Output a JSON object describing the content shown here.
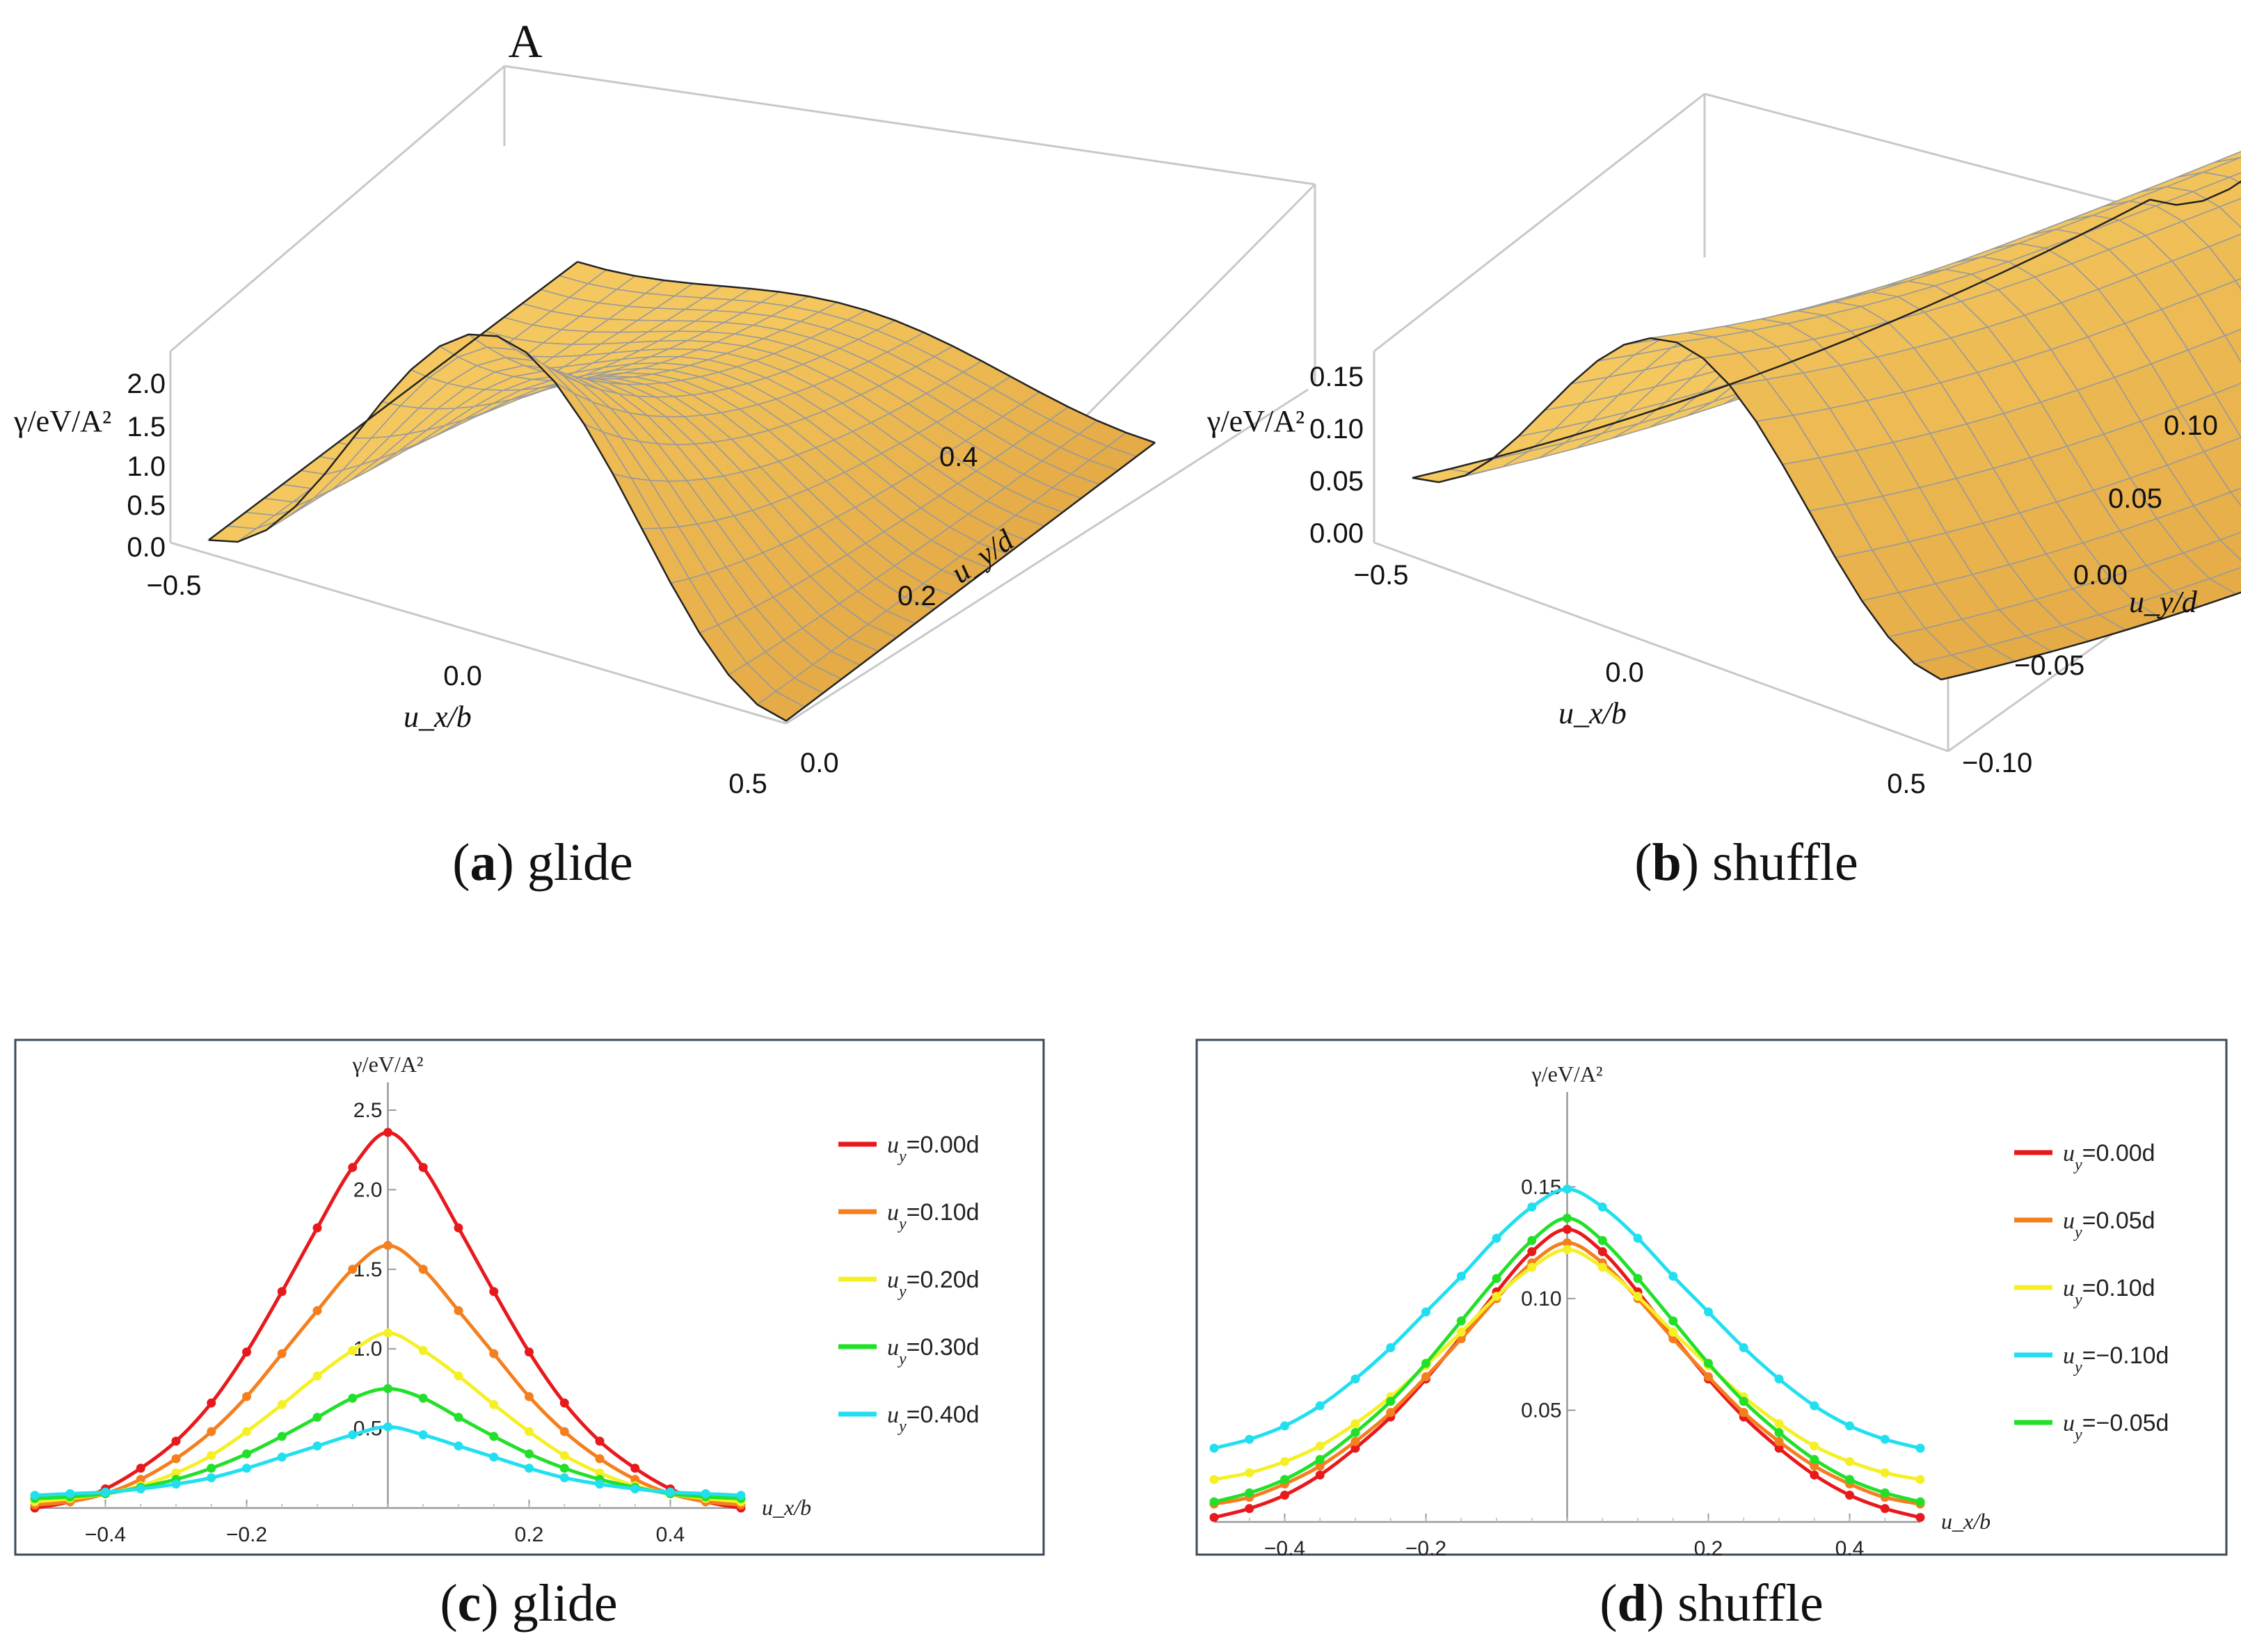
{
  "panels": [
    {
      "letter": "a",
      "caption": "glide",
      "chart_data": {
        "type": "surface",
        "corner_label": "A",
        "zlabel": "γ/eV/A²",
        "xlabel": "u_x/b",
        "ylabel": "u_y/d",
        "z_ticks": [
          "2.0",
          "1.5",
          "1.0",
          "0.5",
          "0.0"
        ],
        "x_ticks": [
          "−0.5",
          "0.0",
          "0.5"
        ],
        "y_ticks": [
          "0.4",
          "0.2",
          "0.0"
        ],
        "xlim": [
          -0.5,
          0.5
        ],
        "ylim": [
          0,
          0.5
        ],
        "zlim": [
          0,
          2.4
        ],
        "surface": "gamma(ux, uy) = peak(uy) * cos^2(pi*ux) + base(uy)",
        "peak_at_ux0": {
          "uy": [
            0.0,
            0.1,
            0.2,
            0.3,
            0.4
          ],
          "gamma": [
            2.35,
            1.64,
            1.06,
            0.72,
            0.48
          ]
        },
        "color": "#f5c354"
      }
    },
    {
      "letter": "b",
      "caption": "shuffle",
      "chart_data": {
        "type": "surface",
        "zlabel": "γ/eV/A²",
        "xlabel": "u_x/b",
        "ylabel": "u_y/d",
        "z_ticks": [
          "0.15",
          "0.10",
          "0.05",
          "0.00"
        ],
        "x_ticks": [
          "−0.5",
          "0.0",
          "0.5"
        ],
        "y_ticks": [
          "0.10",
          "0.05",
          "0.00",
          "−0.05",
          "−0.10"
        ],
        "xlim": [
          -0.5,
          0.5
        ],
        "ylim": [
          -0.1,
          0.1
        ],
        "zlim": [
          0,
          0.18
        ],
        "peak_at_ux0": {
          "uy": [
            -0.1,
            -0.05,
            0.0,
            0.05,
            0.1
          ],
          "gamma": [
            0.175,
            0.16,
            0.148,
            0.145,
            0.145
          ]
        },
        "color": "#f5c354"
      }
    },
    {
      "letter": "c",
      "caption": "glide",
      "chart_data": {
        "type": "line",
        "ylabel": "γ/eV/A²",
        "xlabel": "u_x/b",
        "xlim": [
          -0.5,
          0.5
        ],
        "ylim": [
          0,
          2.5
        ],
        "x_ticks": [
          "−0.4",
          "−0.2",
          "0.2",
          "0.4"
        ],
        "x_tick_values": [
          -0.4,
          -0.2,
          0.2,
          0.4
        ],
        "y_ticks": [
          "0.5",
          "1.0",
          "1.5",
          "2.0",
          "2.5"
        ],
        "y_tick_values": [
          0.5,
          1.0,
          1.5,
          2.0,
          2.5
        ],
        "x": [
          -0.5,
          -0.45,
          -0.4,
          -0.35,
          -0.3,
          -0.25,
          -0.2,
          -0.15,
          -0.1,
          -0.05,
          0.0,
          0.05,
          0.1,
          0.15,
          0.2,
          0.25,
          0.3,
          0.35,
          0.4,
          0.45,
          0.5
        ],
        "series": [
          {
            "name": "u_y=0.00d",
            "color": "#e8191c",
            "values": [
              0.0,
              0.04,
              0.12,
              0.25,
              0.42,
              0.66,
              0.98,
              1.36,
              1.76,
              2.14,
              2.36,
              2.14,
              1.76,
              1.36,
              0.98,
              0.66,
              0.42,
              0.25,
              0.12,
              0.04,
              0.0
            ]
          },
          {
            "name": "u_y=0.10d",
            "color": "#f47f1f",
            "values": [
              0.02,
              0.04,
              0.09,
              0.18,
              0.31,
              0.48,
              0.7,
              0.97,
              1.24,
              1.5,
              1.65,
              1.5,
              1.24,
              0.97,
              0.7,
              0.48,
              0.31,
              0.18,
              0.09,
              0.04,
              0.02
            ]
          },
          {
            "name": "u_y=0.20d",
            "color": "#f5f026",
            "values": [
              0.04,
              0.06,
              0.09,
              0.14,
              0.22,
              0.33,
              0.48,
              0.65,
              0.83,
              0.99,
              1.1,
              0.99,
              0.83,
              0.65,
              0.48,
              0.33,
              0.22,
              0.14,
              0.09,
              0.06,
              0.04
            ]
          },
          {
            "name": "u_y=0.30d",
            "color": "#22e029",
            "values": [
              0.06,
              0.07,
              0.09,
              0.13,
              0.18,
              0.25,
              0.34,
              0.45,
              0.57,
              0.69,
              0.75,
              0.69,
              0.57,
              0.45,
              0.34,
              0.25,
              0.18,
              0.13,
              0.09,
              0.07,
              0.06
            ]
          },
          {
            "name": "u_y=0.40d",
            "color": "#22dff0",
            "values": [
              0.08,
              0.09,
              0.1,
              0.12,
              0.15,
              0.19,
              0.25,
              0.32,
              0.39,
              0.46,
              0.51,
              0.46,
              0.39,
              0.32,
              0.25,
              0.19,
              0.15,
              0.12,
              0.1,
              0.09,
              0.08
            ]
          }
        ]
      }
    },
    {
      "letter": "d",
      "caption": "shuffle",
      "chart_data": {
        "type": "line",
        "ylabel": "γ/eV/A²",
        "xlabel": "u_x/b",
        "xlim": [
          -0.5,
          0.5
        ],
        "ylim": [
          0,
          0.18
        ],
        "x_ticks": [
          "−0.4",
          "−0.2",
          "0.2",
          "0.4"
        ],
        "x_tick_values": [
          -0.4,
          -0.2,
          0.2,
          0.4
        ],
        "y_ticks": [
          "0.05",
          "0.10",
          "0.15"
        ],
        "y_tick_values": [
          0.05,
          0.1,
          0.15
        ],
        "x": [
          -0.5,
          -0.45,
          -0.4,
          -0.35,
          -0.3,
          -0.25,
          -0.2,
          -0.15,
          -0.1,
          -0.05,
          0.0,
          0.05,
          0.1,
          0.15,
          0.2,
          0.25,
          0.3,
          0.35,
          0.4,
          0.45,
          0.5
        ],
        "series": [
          {
            "name": "u_y=0.00d",
            "color": "#e8191c",
            "values": [
              0.002,
              0.006,
              0.012,
              0.021,
              0.033,
              0.047,
              0.064,
              0.083,
              0.103,
              0.121,
              0.131,
              0.121,
              0.103,
              0.083,
              0.064,
              0.047,
              0.033,
              0.021,
              0.012,
              0.006,
              0.002
            ]
          },
          {
            "name": "u_y=0.05d",
            "color": "#f47f1f",
            "values": [
              0.008,
              0.011,
              0.017,
              0.025,
              0.036,
              0.049,
              0.065,
              0.082,
              0.1,
              0.116,
              0.125,
              0.116,
              0.1,
              0.082,
              0.065,
              0.049,
              0.036,
              0.025,
              0.017,
              0.011,
              0.008
            ]
          },
          {
            "name": "u_y=0.10d",
            "color": "#f5f026",
            "values": [
              0.019,
              0.022,
              0.027,
              0.034,
              0.044,
              0.056,
              0.07,
              0.085,
              0.101,
              0.114,
              0.122,
              0.114,
              0.101,
              0.085,
              0.07,
              0.056,
              0.044,
              0.034,
              0.027,
              0.022,
              0.019
            ]
          },
          {
            "name": "u_y=−0.10d",
            "color": "#22dff0",
            "values": [
              0.033,
              0.037,
              0.043,
              0.052,
              0.064,
              0.078,
              0.094,
              0.11,
              0.127,
              0.141,
              0.149,
              0.141,
              0.127,
              0.11,
              0.094,
              0.078,
              0.064,
              0.052,
              0.043,
              0.037,
              0.033
            ]
          },
          {
            "name": "u_y=−0.05d",
            "color": "#22e029",
            "values": [
              0.009,
              0.013,
              0.019,
              0.028,
              0.04,
              0.054,
              0.071,
              0.09,
              0.109,
              0.126,
              0.136,
              0.126,
              0.109,
              0.09,
              0.071,
              0.054,
              0.04,
              0.028,
              0.019,
              0.013,
              0.009
            ]
          }
        ]
      }
    }
  ]
}
